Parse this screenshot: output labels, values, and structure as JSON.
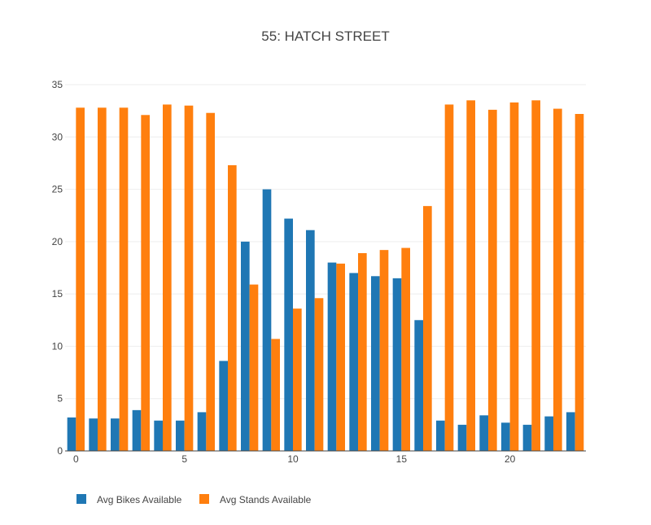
{
  "chart_data": {
    "type": "bar",
    "title": "55: HATCH STREET",
    "xlabel": "",
    "ylabel": "",
    "x": [
      0,
      1,
      2,
      3,
      4,
      5,
      6,
      7,
      8,
      9,
      10,
      11,
      12,
      13,
      14,
      15,
      16,
      17,
      18,
      19,
      20,
      21,
      22,
      23
    ],
    "x_ticks": [
      0,
      5,
      10,
      15,
      20
    ],
    "y_ticks": [
      0,
      5,
      10,
      15,
      20,
      25,
      30,
      35
    ],
    "xlim": [
      -0.5,
      23.5
    ],
    "ylim": [
      0,
      35
    ],
    "grid": true,
    "legend_position": "bottom-left",
    "series": [
      {
        "name": "Avg Bikes Available",
        "color": "#1f77b4",
        "values": [
          3.2,
          3.1,
          3.1,
          3.9,
          2.9,
          2.9,
          3.7,
          8.6,
          20.0,
          25.0,
          22.2,
          21.1,
          18.0,
          17.0,
          16.7,
          16.5,
          12.5,
          2.9,
          2.5,
          3.4,
          2.7,
          2.5,
          3.3,
          3.7
        ]
      },
      {
        "name": "Avg Stands Available",
        "color": "#ff7f0e",
        "values": [
          32.8,
          32.8,
          32.8,
          32.1,
          33.1,
          33.0,
          32.3,
          27.3,
          15.9,
          10.7,
          13.6,
          14.6,
          17.9,
          18.9,
          19.2,
          19.4,
          23.4,
          33.1,
          33.5,
          32.6,
          33.3,
          33.5,
          32.7,
          32.2
        ]
      }
    ]
  }
}
